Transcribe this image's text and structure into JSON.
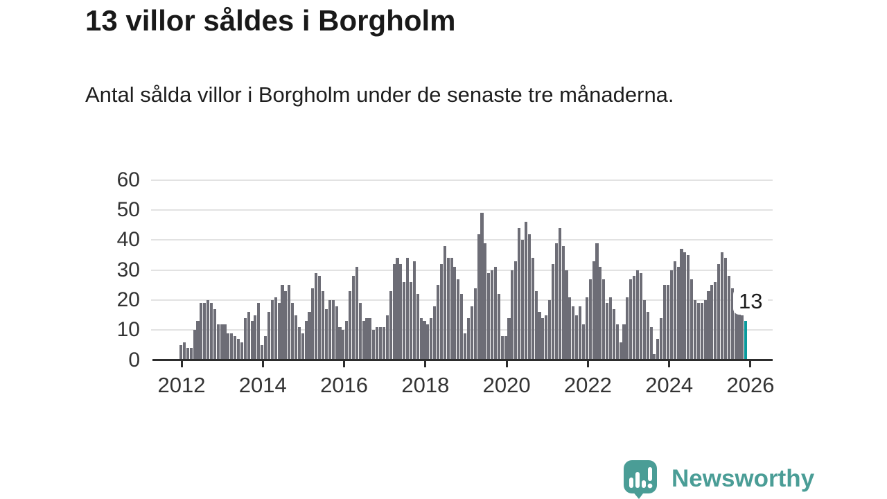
{
  "header": {
    "title": "13 villor såldes i Borgholm",
    "subtitle": "Antal sålda villor i Borgholm under de senaste tre månaderna."
  },
  "chart_data": {
    "type": "bar",
    "title": "13 villor såldes i Borgholm",
    "xlabel": "",
    "ylabel": "",
    "x_unit": "month",
    "x_range_start": "2012-01",
    "x_range_end": "2025-12",
    "ylim": [
      0,
      60
    ],
    "y_ticks": [
      0,
      10,
      20,
      30,
      40,
      50,
      60
    ],
    "x_tick_labels": [
      "2012",
      "2014",
      "2016",
      "2018",
      "2020",
      "2022",
      "2024",
      "2026"
    ],
    "grid": true,
    "legend": "none",
    "bar_color": "#6d6d76",
    "highlight_color": "#0a9a9c",
    "annotation": {
      "label": "13",
      "index": 167,
      "value": 13
    },
    "values": [
      5,
      6,
      4,
      4,
      10,
      13,
      19,
      19,
      20,
      19,
      17,
      12,
      12,
      12,
      9,
      9,
      8,
      7,
      6,
      14,
      16,
      13,
      15,
      19,
      5,
      8,
      16,
      20,
      21,
      19,
      25,
      23,
      25,
      19,
      15,
      11,
      9,
      13,
      16,
      24,
      29,
      28,
      23,
      17,
      20,
      20,
      18,
      11,
      10,
      13,
      23,
      28,
      31,
      19,
      13,
      14,
      14,
      10,
      11,
      11,
      11,
      15,
      23,
      32,
      34,
      32,
      26,
      34,
      26,
      33,
      22,
      14,
      13,
      12,
      14,
      18,
      25,
      32,
      38,
      34,
      34,
      31,
      27,
      22,
      9,
      14,
      18,
      24,
      42,
      49,
      39,
      29,
      30,
      31,
      22,
      8,
      8,
      14,
      30,
      33,
      44,
      40,
      46,
      42,
      34,
      23,
      16,
      14,
      15,
      20,
      32,
      39,
      44,
      38,
      30,
      21,
      18,
      15,
      18,
      12,
      21,
      27,
      33,
      39,
      31,
      27,
      19,
      21,
      17,
      12,
      6,
      12,
      21,
      27,
      28,
      30,
      29,
      20,
      16,
      11,
      2,
      7,
      14,
      25,
      25,
      30,
      33,
      31,
      37,
      36,
      35,
      27,
      20,
      19,
      19,
      20,
      23,
      25,
      26,
      32,
      36,
      34,
      28,
      24,
      20,
      17,
      15,
      13
    ]
  },
  "branding": {
    "name": "Newsworthy",
    "color": "#4a9d96",
    "icon": "newsworthy-speech-bubble-chart-icon"
  }
}
